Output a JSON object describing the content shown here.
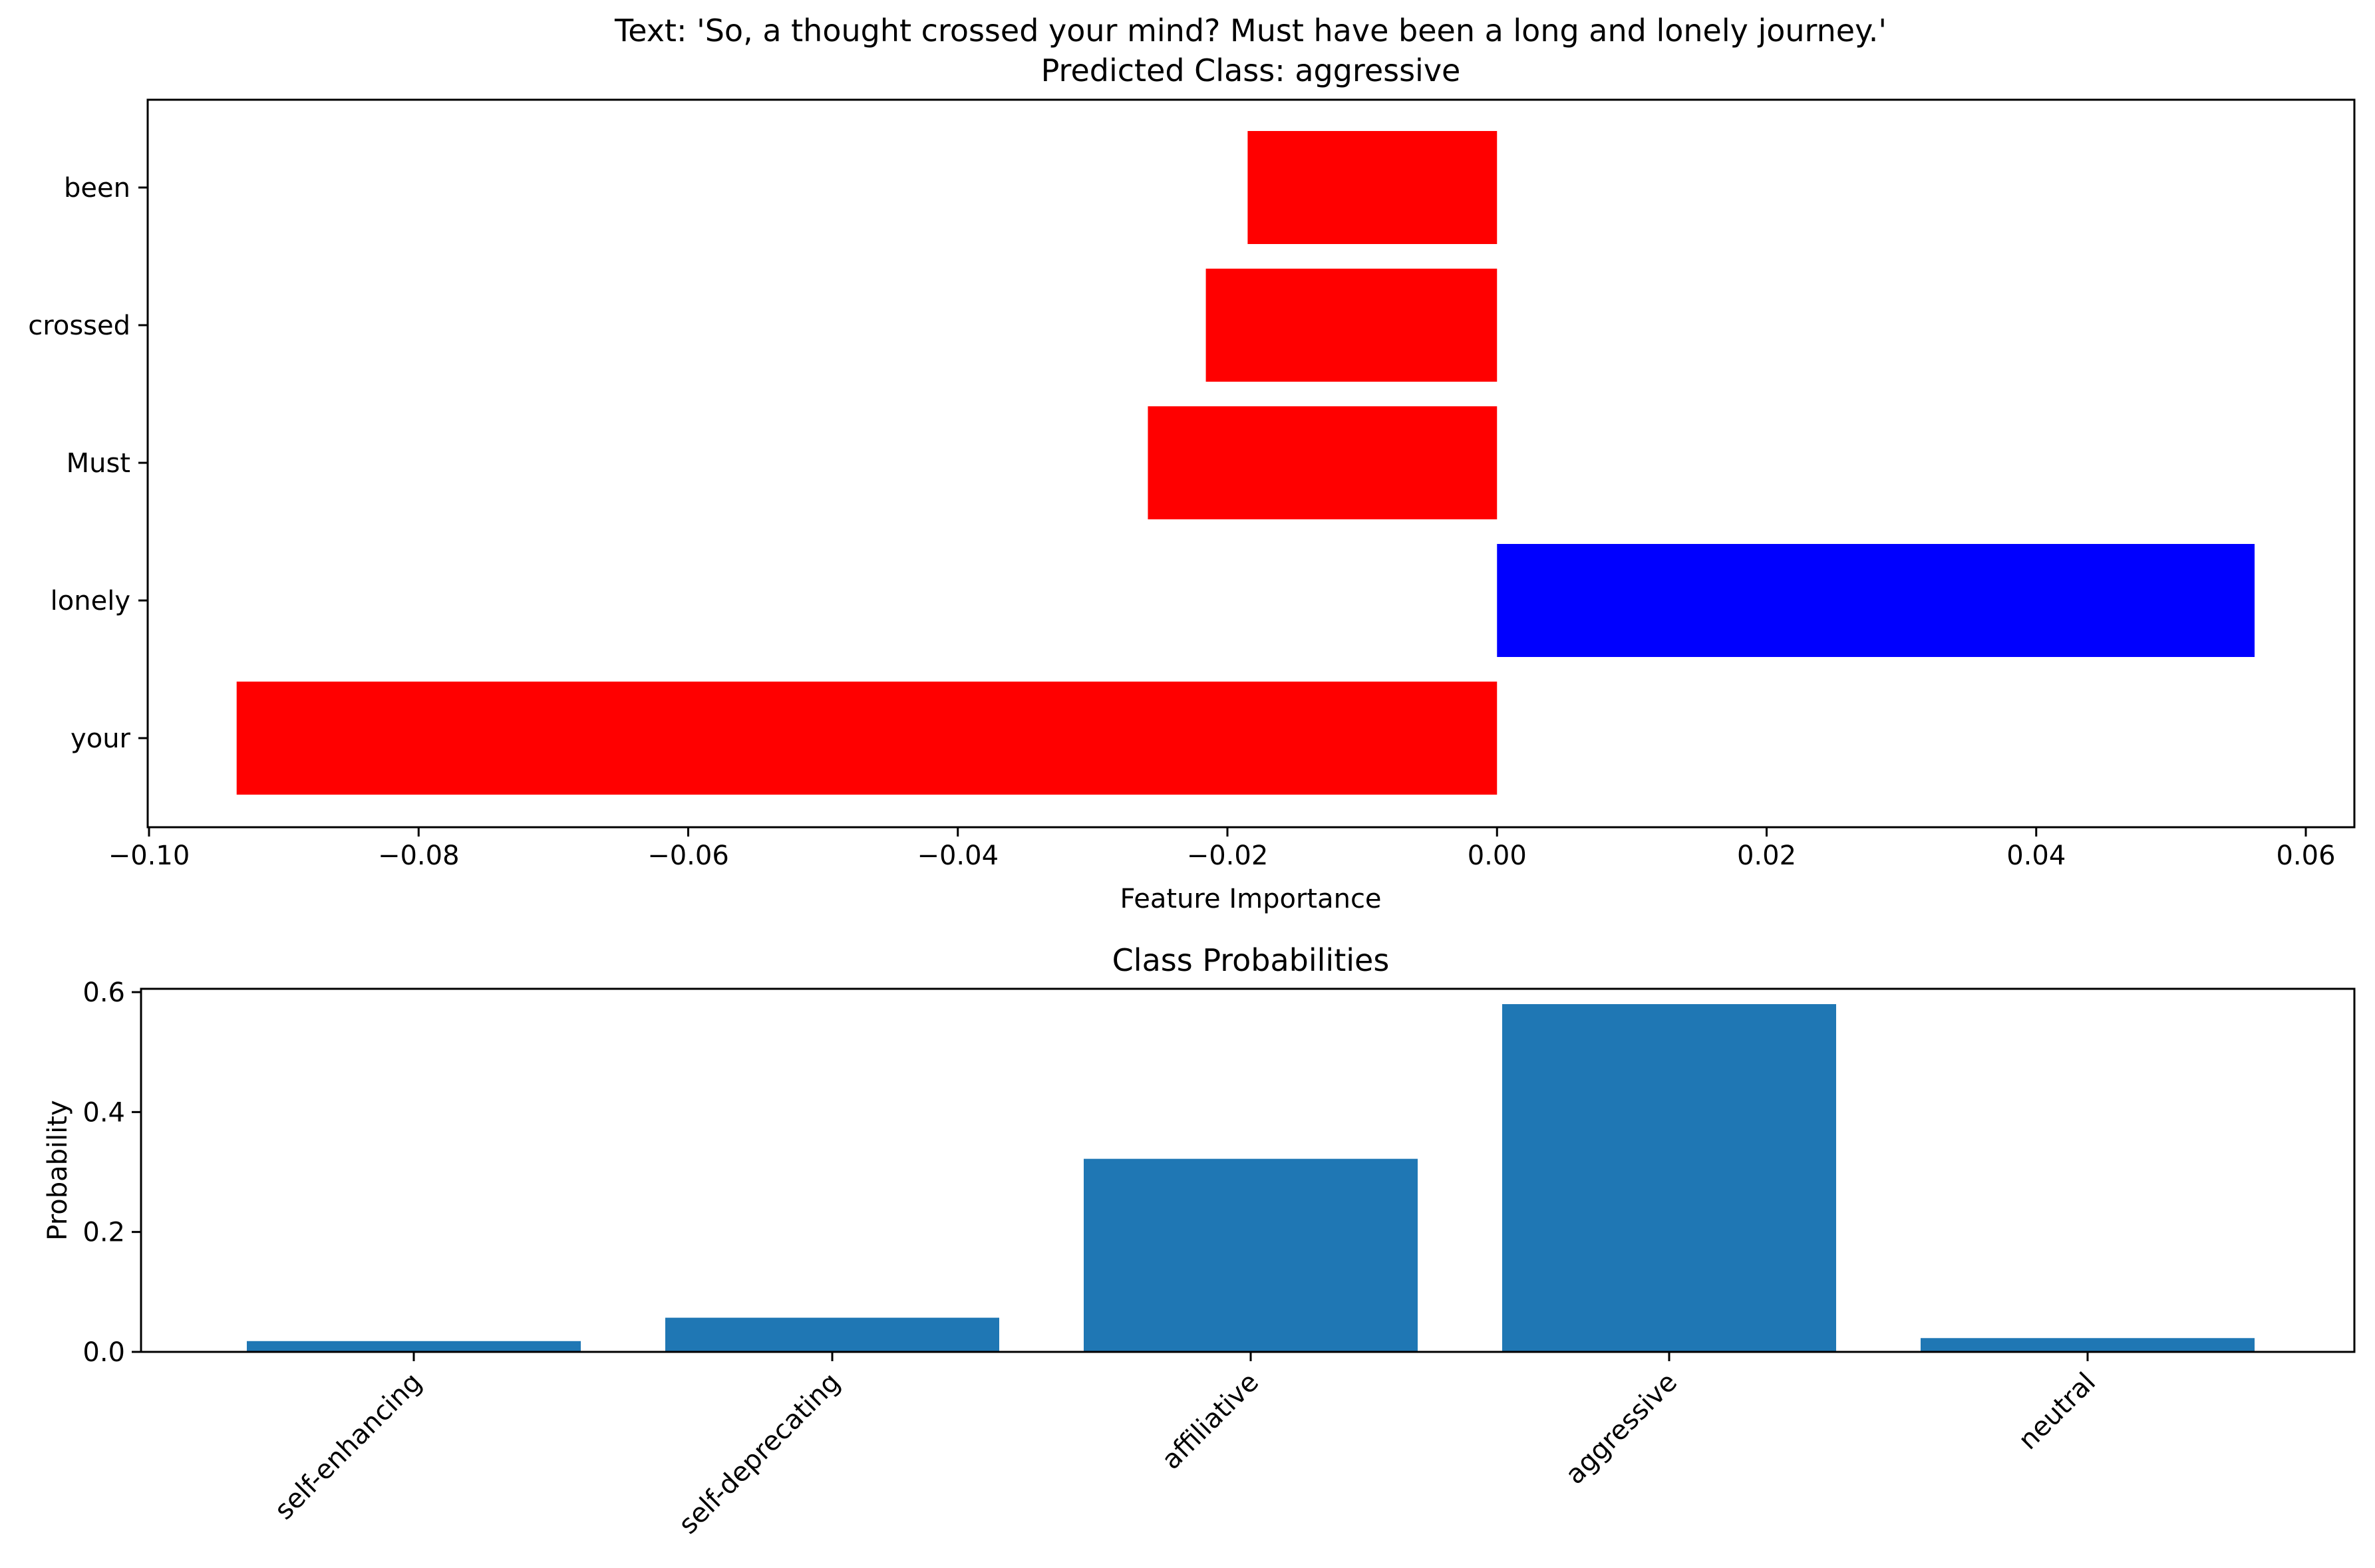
{
  "chart_data": [
    {
      "type": "bar",
      "orientation": "horizontal",
      "title": "Text: 'So, a thought crossed your mind? Must have been a long and lonely journey.'",
      "subtitle": "Predicted Class: aggressive",
      "xlabel": "Feature Importance",
      "ylabel": "",
      "xlim": [
        -0.1,
        0.06
      ],
      "categories": [
        "been",
        "crossed",
        "Must",
        "lonely",
        "your"
      ],
      "values": [
        -0.0185,
        -0.0216,
        -0.0259,
        0.0562,
        -0.0935
      ],
      "bar_colors": [
        "#ff0000",
        "#ff0000",
        "#ff0000",
        "#0000ff",
        "#ff0000"
      ],
      "x_ticks": [
        -0.1,
        -0.08,
        -0.06,
        -0.04,
        -0.02,
        0.0,
        0.02,
        0.04,
        0.06
      ],
      "x_tick_labels": [
        "−0.10",
        "−0.08",
        "−0.06",
        "−0.04",
        "−0.02",
        "0.00",
        "0.02",
        "0.04",
        "0.06"
      ],
      "grid": false
    },
    {
      "type": "bar",
      "title": "Class Probabilities",
      "xlabel": "",
      "ylabel": "Probability",
      "ylim": [
        0,
        0.6
      ],
      "categories": [
        "self-enhancing",
        "self-deprecating",
        "affiliative",
        "aggressive",
        "neutral"
      ],
      "values": [
        0.018,
        0.057,
        0.322,
        0.58,
        0.023
      ],
      "bar_color": "#1f77b4",
      "y_ticks": [
        0.0,
        0.2,
        0.4,
        0.6
      ],
      "y_tick_labels": [
        "0.0",
        "0.2",
        "0.4",
        "0.6"
      ],
      "grid": false
    }
  ]
}
